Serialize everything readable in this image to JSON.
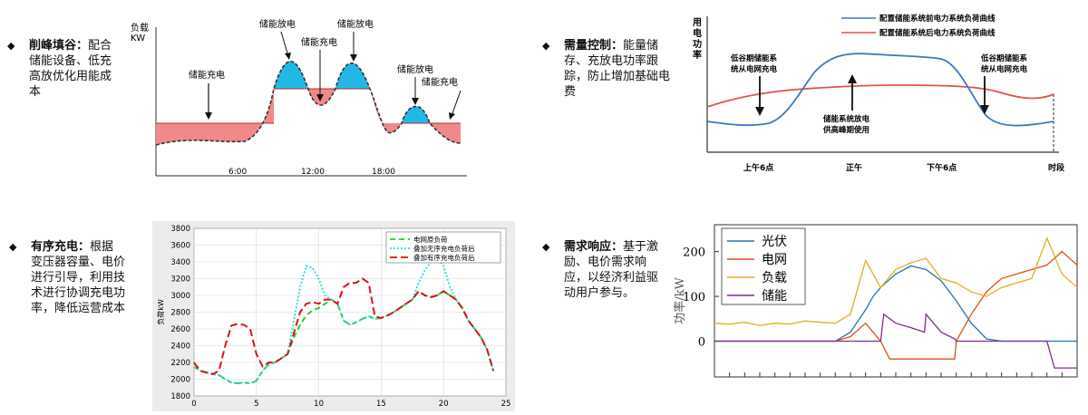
{
  "bullets": {
    "peak": {
      "title": "削峰填谷",
      "colon": "：",
      "body": "配合储能设备、低充高放优化用能成本"
    },
    "demand": {
      "title": "需量控制",
      "colon": "：",
      "body": "能量储存、充放电功率跟踪，防止增加基础电费"
    },
    "orderly": {
      "title": "有序充电",
      "colon": "：",
      "body": "根据变压器容量、电价进行引导，利用技术进行协调充电功率，降低运营成本"
    },
    "response": {
      "title": "需求响应",
      "colon": "：",
      "body": "基于激励、电价需求响应，以经济利益驱动用户参与。"
    }
  },
  "peak_chart": {
    "ylabel_line1": "负载",
    "ylabel_line2": "KW",
    "annotations": {
      "charge_left": "储能充电",
      "discharge_1": "储能放电",
      "charge_mid": "储能充电",
      "discharge_2": "储能放电",
      "discharge_3": "储能放电",
      "charge_right": "储能充电"
    },
    "x_ticks": [
      "6:00",
      "12:00",
      "18:00"
    ],
    "colors": {
      "discharge_fill": "#22b8e6",
      "charge_fill": "#f08a8a",
      "load_line": "#333333"
    }
  },
  "demand_chart": {
    "ylabel": [
      "用",
      "电",
      "功",
      "率"
    ],
    "legend": [
      {
        "label": "配置储能系统前电力系统负荷曲线",
        "color": "#3b78c2"
      },
      {
        "label": "配置储能系统后电力系统负荷曲线",
        "color": "#e0534a"
      }
    ],
    "annotations": {
      "left_line1": "低谷期储能系",
      "left_line2": "统从电网充电",
      "mid_line1": "储能系统放电",
      "mid_line2": "供高峰期使用",
      "right_line1": "低谷期储能系",
      "right_line2": "统从电网充电"
    },
    "x_ticks": [
      "上午6点",
      "正午",
      "下午6点"
    ],
    "xlabel": "时段"
  },
  "chart_data": [
    {
      "type": "line",
      "title": "",
      "xlabel": "",
      "ylabel": "负荷kW",
      "xlim": [
        0,
        25
      ],
      "ylim": [
        1800,
        3800
      ],
      "x_ticks": [
        0,
        5,
        10,
        15,
        20,
        25
      ],
      "y_ticks": [
        1800,
        2000,
        2200,
        2400,
        2600,
        2800,
        3000,
        3200,
        3400,
        3600,
        3800
      ],
      "grid": true,
      "legend_position": "top-right",
      "series": [
        {
          "name": "电网原负荷",
          "color": "#22cc22",
          "dash": "6,4",
          "x": [
            0,
            0.5,
            1,
            1.5,
            2,
            2.5,
            3,
            3.5,
            4,
            4.5,
            5,
            5.5,
            6,
            6.5,
            7,
            7.5,
            8,
            8.5,
            9,
            9.5,
            10,
            10.5,
            11,
            11.5,
            12,
            12.5,
            13,
            13.5,
            14,
            14.5,
            15,
            15.5,
            16,
            16.5,
            17,
            17.5,
            18,
            18.5,
            19,
            19.5,
            20,
            20.5,
            21,
            21.5,
            22,
            22.5,
            23,
            23.5,
            24
          ],
          "values": [
            2150,
            2100,
            2080,
            2060,
            2050,
            2000,
            1960,
            1950,
            1960,
            1950,
            1980,
            2100,
            2180,
            2200,
            2250,
            2300,
            2500,
            2650,
            2760,
            2820,
            2850,
            2900,
            2950,
            2900,
            2700,
            2650,
            2680,
            2720,
            2750,
            2720,
            2730,
            2760,
            2800,
            2850,
            2900,
            2950,
            3050,
            3000,
            2980,
            3000,
            3050,
            3000,
            2950,
            2850,
            2700,
            2600,
            2500,
            2350,
            2100
          ]
        },
        {
          "name": "叠加无序充电负荷后",
          "color": "#33dddd",
          "dash": "2,2",
          "x": [
            0,
            0.5,
            1,
            1.5,
            2,
            2.5,
            3,
            3.5,
            4,
            4.5,
            5,
            5.5,
            6,
            6.5,
            7,
            7.5,
            8,
            8.5,
            9,
            9.5,
            10,
            10.5,
            11,
            11.5,
            12,
            12.5,
            13,
            13.5,
            14,
            14.5,
            15,
            15.5,
            16,
            16.5,
            17,
            17.5,
            18,
            18.5,
            19,
            19.5,
            20,
            20.5,
            21,
            21.5,
            22,
            22.5,
            23,
            23.5,
            24
          ],
          "values": [
            2150,
            2100,
            2080,
            2060,
            2050,
            2000,
            1960,
            1950,
            1960,
            1950,
            1980,
            2100,
            2180,
            2200,
            2250,
            2300,
            2700,
            3100,
            3350,
            3330,
            3200,
            3000,
            2950,
            2900,
            2700,
            2650,
            2680,
            2720,
            2750,
            2720,
            2730,
            2760,
            2800,
            2850,
            2900,
            2950,
            3150,
            3300,
            3400,
            3450,
            3350,
            3100,
            2950,
            2850,
            2700,
            2600,
            2500,
            2350,
            2100
          ]
        },
        {
          "name": "叠加有序充电负荷后",
          "color": "#dd1111",
          "dash": "8,4",
          "x": [
            0,
            0.5,
            1,
            1.5,
            2,
            2.5,
            3,
            3.5,
            4,
            4.5,
            5,
            5.5,
            6,
            6.5,
            7,
            7.5,
            8,
            8.5,
            9,
            9.5,
            10,
            10.5,
            11,
            11.5,
            12,
            12.5,
            13,
            13.5,
            14,
            14.5,
            15,
            15.5,
            16,
            16.5,
            17,
            17.5,
            18,
            18.5,
            19,
            19.5,
            20,
            20.5,
            21,
            21.5,
            22,
            22.5,
            23,
            23.5,
            24
          ],
          "values": [
            2200,
            2100,
            2080,
            2060,
            2100,
            2400,
            2640,
            2660,
            2650,
            2600,
            2300,
            2150,
            2200,
            2200,
            2250,
            2300,
            2550,
            2800,
            2900,
            2920,
            2900,
            2950,
            2950,
            2900,
            3100,
            3150,
            3150,
            3200,
            3150,
            2750,
            2730,
            2760,
            2800,
            2850,
            2900,
            2950,
            3050,
            3000,
            2980,
            3000,
            3050,
            3000,
            2950,
            2850,
            2700,
            2600,
            2500,
            2350,
            2100
          ]
        }
      ]
    },
    {
      "type": "line",
      "title": "",
      "xlabel": "",
      "ylabel": "功率/kW",
      "xlim": [
        0,
        24
      ],
      "ylim": [
        -80,
        260
      ],
      "y_ticks": [
        0,
        100,
        200
      ],
      "grid": false,
      "legend_position": "top-left",
      "series": [
        {
          "name": "光伏",
          "color": "#1f77b4",
          "x": [
            0,
            1,
            2,
            3,
            4,
            5,
            6,
            7,
            8,
            9,
            10,
            10.5,
            11,
            12,
            13,
            14,
            15,
            16,
            17,
            18,
            19,
            20,
            21,
            22,
            23,
            24
          ],
          "values": [
            0,
            0,
            0,
            0,
            0,
            0,
            0,
            0,
            0,
            20,
            70,
            100,
            120,
            150,
            168,
            160,
            135,
            90,
            40,
            5,
            0,
            0,
            0,
            0,
            0,
            0
          ]
        },
        {
          "name": "电网",
          "color": "#d95319",
          "x": [
            0,
            1,
            2,
            3,
            4,
            5,
            6,
            7,
            8,
            9,
            10,
            10.5,
            11,
            11.6,
            12,
            13,
            14,
            15,
            15.9,
            16,
            17,
            18,
            19,
            20,
            21,
            22,
            23,
            24
          ],
          "values": [
            0,
            0,
            0,
            0,
            0,
            0,
            0,
            0,
            0,
            10,
            40,
            20,
            0,
            -40,
            -40,
            -40,
            -40,
            -40,
            -40,
            0,
            60,
            110,
            140,
            150,
            160,
            170,
            200,
            170
          ]
        },
        {
          "name": "负载",
          "color": "#e0b020",
          "x": [
            0,
            1,
            2,
            3,
            4,
            5,
            6,
            7,
            8,
            9,
            10,
            10.5,
            11,
            12,
            13,
            14,
            15,
            16,
            17,
            18,
            19,
            20,
            21,
            22,
            23,
            24
          ],
          "values": [
            40,
            38,
            42,
            35,
            40,
            38,
            45,
            42,
            40,
            60,
            180,
            150,
            120,
            160,
            175,
            185,
            140,
            130,
            110,
            100,
            120,
            130,
            140,
            230,
            150,
            120
          ]
        },
        {
          "name": "储能",
          "color": "#7e2f8e",
          "x": [
            0,
            1,
            2,
            3,
            4,
            5,
            6,
            7,
            8,
            9,
            10,
            11,
            11.2,
            12,
            13,
            13.9,
            14,
            14.5,
            15,
            15.9,
            16,
            20,
            22,
            22.5,
            23,
            24
          ],
          "values": [
            0,
            0,
            0,
            0,
            0,
            0,
            0,
            0,
            0,
            0,
            0,
            0,
            60,
            40,
            30,
            20,
            60,
            40,
            20,
            5,
            0,
            0,
            0,
            -60,
            -60,
            -60
          ]
        }
      ]
    }
  ]
}
